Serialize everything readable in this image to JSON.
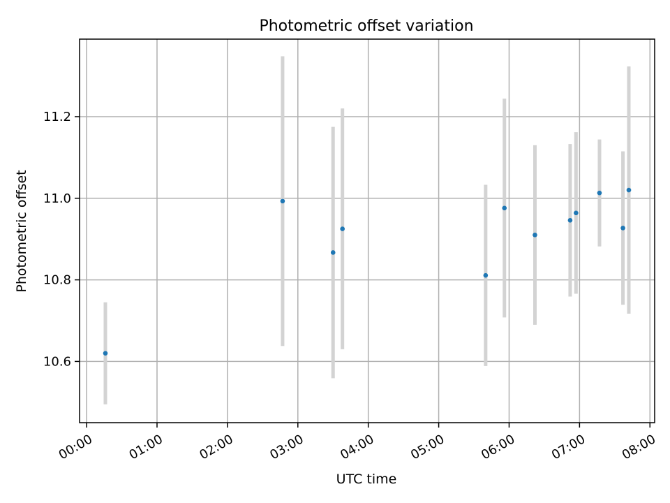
{
  "chart_data": {
    "type": "scatter",
    "title": "Photometric offset variation",
    "xlabel": "UTC time",
    "ylabel": "Photometric offset",
    "grid": true,
    "x_axis": {
      "kind": "time",
      "range": [
        "23:54",
        "08:04"
      ],
      "ticks": [
        "00:00",
        "01:00",
        "02:00",
        "03:00",
        "04:00",
        "05:00",
        "06:00",
        "07:00",
        "08:00"
      ]
    },
    "y_axis": {
      "range": [
        10.45,
        11.39
      ],
      "ticks": [
        10.6,
        10.8,
        11.0,
        11.2
      ],
      "tick_labels": [
        "10.6",
        "10.8",
        "11.0",
        "11.2"
      ]
    },
    "colors": {
      "points": "#1f77b4",
      "error_bars": "#d3d3d3",
      "grid": "#b0b0b0"
    },
    "series": [
      {
        "points": [
          {
            "time": "00:16",
            "y": 10.62,
            "yerr": 0.125
          },
          {
            "time": "02:47",
            "y": 10.993,
            "yerr": 0.355
          },
          {
            "time": "03:30",
            "y": 10.867,
            "yerr": 0.308
          },
          {
            "time": "03:38",
            "y": 10.925,
            "yerr": 0.295
          },
          {
            "time": "05:40",
            "y": 10.811,
            "yerr": 0.222
          },
          {
            "time": "05:56",
            "y": 10.976,
            "yerr": 0.268
          },
          {
            "time": "06:22",
            "y": 10.91,
            "yerr": 0.22
          },
          {
            "time": "06:52",
            "y": 10.946,
            "yerr": 0.187
          },
          {
            "time": "06:57",
            "y": 10.964,
            "yerr": 0.198
          },
          {
            "time": "07:17",
            "y": 11.013,
            "yerr": 0.131
          },
          {
            "time": "07:37",
            "y": 10.927,
            "yerr": 0.188
          },
          {
            "time": "07:42",
            "y": 11.02,
            "yerr": 0.303
          }
        ]
      }
    ]
  }
}
